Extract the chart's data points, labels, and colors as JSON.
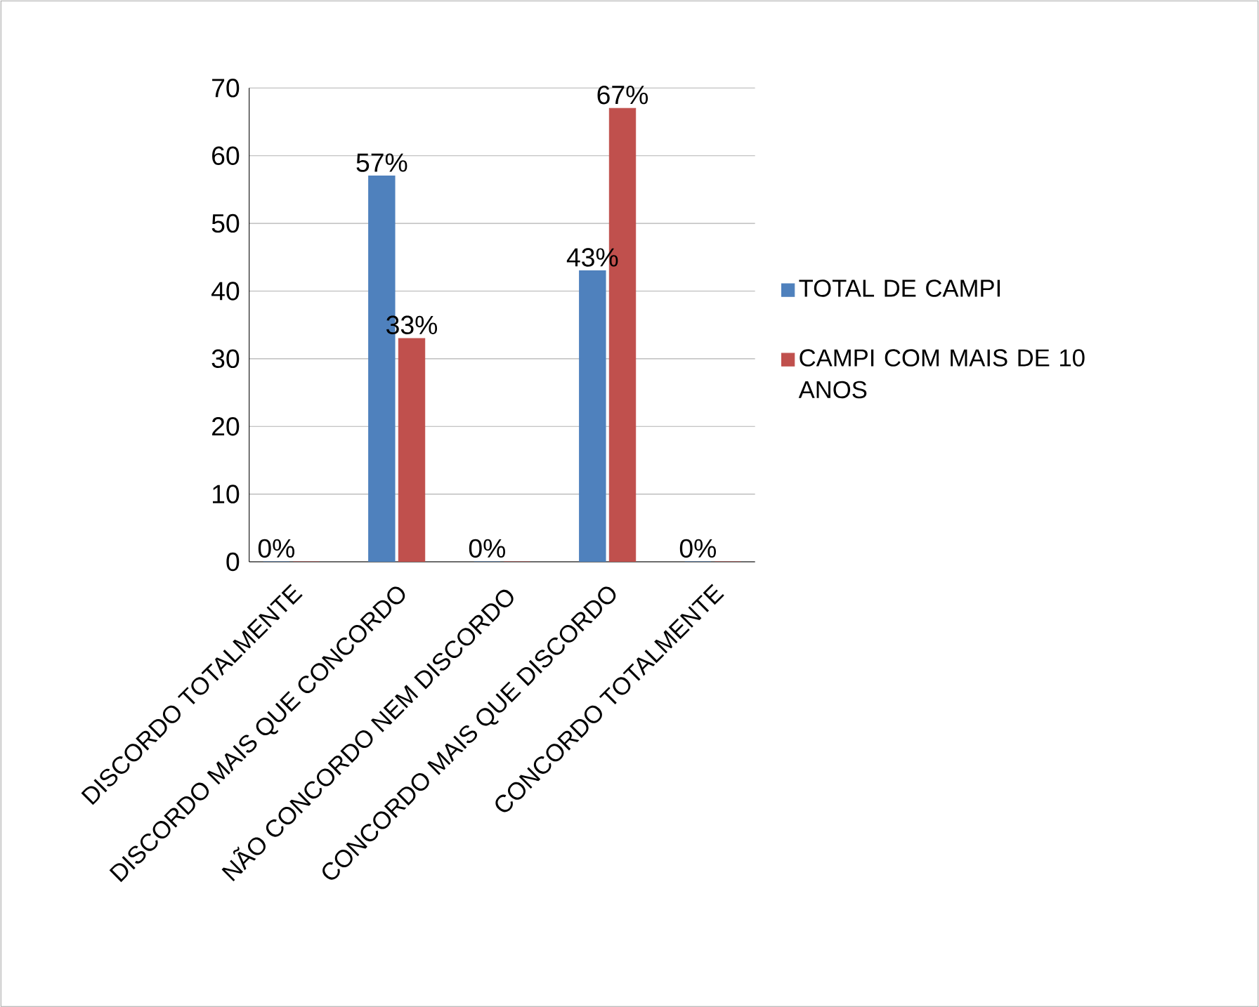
{
  "chart_data": {
    "type": "bar",
    "categories": [
      "DISCORDO TOTALMENTE",
      "DISCORDO MAIS QUE CONCORDO",
      "NÃO CONCORDO NEM DISCORDO",
      "CONCORDO MAIS QUE DISCORDO",
      "CONCORDO TOTALMENTE"
    ],
    "series": [
      {
        "name": "TOTAL DE CAMPI",
        "color": "#4f81bd",
        "values": [
          0,
          57,
          0,
          43,
          0
        ],
        "value_labels": [
          "0%",
          "57%",
          "0%",
          "43%",
          "0%"
        ]
      },
      {
        "name": "CAMPI COM MAIS DE 10 ANOS",
        "color": "#c0504d",
        "values": [
          0,
          33,
          0,
          67,
          0
        ],
        "value_labels": [
          null,
          "33%",
          null,
          "67%",
          null
        ]
      }
    ],
    "ylim": [
      0,
      70
    ],
    "yticks": [
      0,
      10,
      20,
      30,
      40,
      50,
      60,
      70
    ],
    "grid": "y",
    "legend": "right"
  }
}
